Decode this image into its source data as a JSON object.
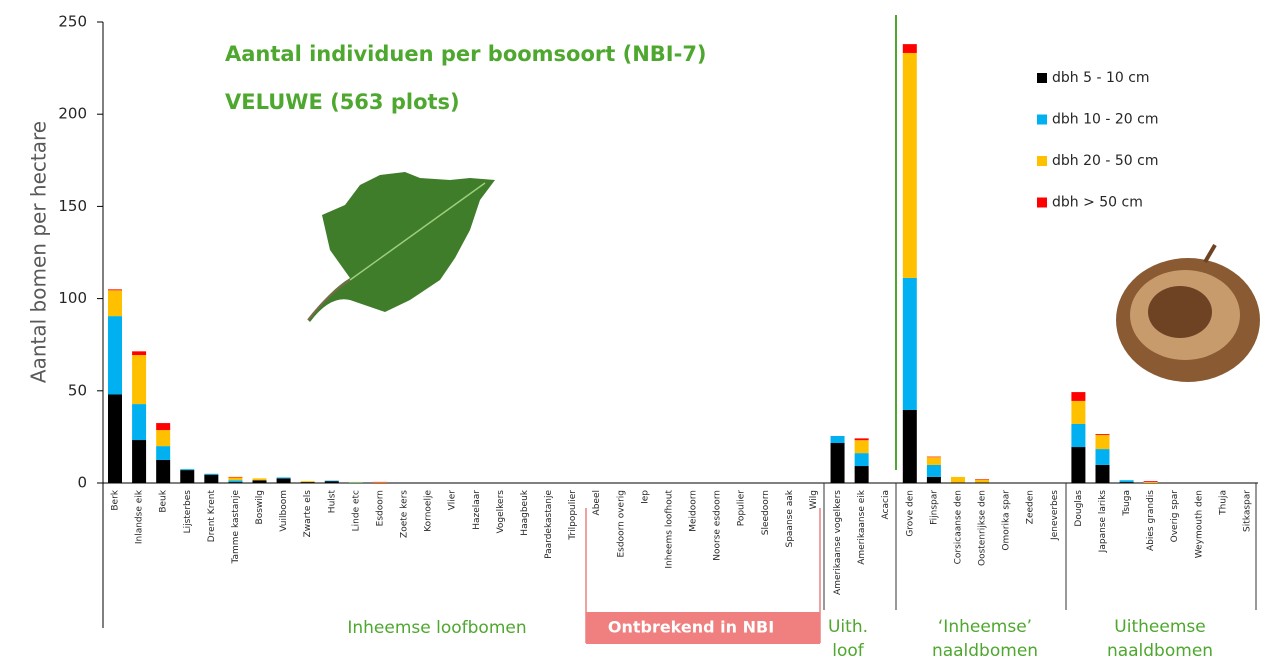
{
  "chart_data": {
    "type": "bar",
    "stacked": true,
    "title": "Aantal individuen per boomsoort (NBI-7)",
    "subtitle": "VELUWE (563 plots)",
    "y_label": "Aantal bomen per hectare",
    "categories": [
      "Berk",
      "Inlandse eik",
      "Beuk",
      "Lijsterbes",
      "Drent Krent",
      "Tamme kastanje",
      "Boswilg",
      "Vuilboom",
      "Zwarte els",
      "Hulst",
      "Linde etc",
      "Esdoorn",
      "Zoete kers",
      "Kornoelje",
      "Vlier",
      "Hazelaar",
      "Vogelkers",
      "Haagbeuk",
      "Paardekastanje",
      "Trilpopulier",
      "Abeel",
      "Esdoorn overig",
      "Iep",
      "Inheems loofhout",
      "Meidoorn",
      "Noorse esdoorn",
      "Populier",
      "Sleedoorn",
      "Spaanse aak",
      "Wilg",
      "Amerikaanse vogelkers",
      "Amerikaanse eik",
      "Acacia",
      "Grove den",
      "Fijnspar",
      "Corsicaanse den",
      "Oostenrijkse den",
      "Omorika spar",
      "Zeeden",
      "Jeneverbes",
      "Douglas",
      "Japanse lariks",
      "Tsuga",
      "Abies grandis",
      "Overig spar",
      "Weymouth den",
      "Thuja",
      "Sitkaspar"
    ],
    "series": [
      {
        "name": "dbh 5 - 10 cm",
        "color": "#000000",
        "values": [
          48,
          23.3,
          12.5,
          7,
          4.5,
          0.5,
          1.5,
          2.5,
          0.5,
          1,
          0,
          0,
          0,
          0,
          0,
          0,
          0,
          0,
          0,
          0,
          0,
          0,
          0,
          0,
          0,
          0,
          0,
          0,
          0,
          0,
          21.7,
          9.2,
          0,
          39.6,
          3.3,
          0.3,
          0.3,
          0,
          0,
          0,
          19.5,
          9.8,
          0.5,
          0,
          0,
          0,
          0,
          0
        ]
      },
      {
        "name": "dbh 10 - 20 cm",
        "color": "#00b0f0",
        "values": [
          42.5,
          19.5,
          7.5,
          0.5,
          0.5,
          1,
          0,
          0.5,
          0,
          0.3,
          0.3,
          0,
          0,
          0,
          0,
          0,
          0,
          0,
          0,
          0,
          0,
          0,
          0,
          0,
          0,
          0,
          0,
          0,
          0,
          0,
          3.8,
          7,
          0,
          71.6,
          6.5,
          0,
          0,
          0,
          0,
          0,
          12.5,
          8.6,
          1,
          0,
          0,
          0,
          0,
          0
        ]
      },
      {
        "name": "dbh 20 - 50 cm",
        "color": "#ffc000",
        "values": [
          14,
          26.6,
          8.7,
          0,
          0,
          1.5,
          1,
          0,
          0.5,
          0,
          0.3,
          0.3,
          0,
          0,
          0,
          0,
          0,
          0,
          0,
          0,
          0,
          0,
          0,
          0,
          0,
          0,
          0,
          0,
          0,
          0,
          0,
          7,
          0,
          122,
          4.2,
          3,
          1.5,
          0,
          0,
          0,
          12.5,
          7.6,
          0,
          0.5,
          0,
          0,
          0,
          0
        ]
      },
      {
        "name": "dbh > 50 cm",
        "color": "#ff0000",
        "values": [
          0.5,
          2,
          3.8,
          0,
          0,
          0.3,
          0,
          0,
          0,
          0,
          0,
          0.3,
          0,
          0,
          0,
          0,
          0,
          0,
          0,
          0,
          0,
          0,
          0,
          0,
          0,
          0,
          0,
          0,
          0,
          0,
          0,
          1,
          0,
          4.8,
          0.3,
          0,
          0.3,
          0,
          0,
          0,
          4.8,
          0.5,
          0,
          0.5,
          0,
          0,
          0,
          0
        ]
      }
    ],
    "ylim": [
      0,
      250
    ],
    "yticks": [
      0,
      50,
      100,
      150,
      200,
      250
    ],
    "grid": false,
    "legend": "upper right",
    "group_labels": [
      [
        "Inheemse loofbomen"
      ],
      [
        "Ontbrekend in NBI"
      ],
      [
        "Uith.",
        "loof"
      ],
      [
        "‘Inheemse’",
        "naaldbomen"
      ],
      [
        "Uitheemse",
        "naaldbomen"
      ]
    ]
  }
}
